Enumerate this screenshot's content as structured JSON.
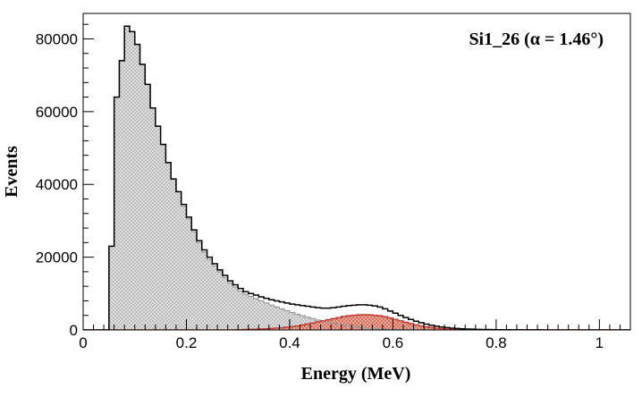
{
  "chart_data": {
    "type": "histogram",
    "title": "",
    "annotation": "Si1_26 (α = 1.46°)",
    "xlabel": "Energy (MeV)",
    "ylabel": "Events",
    "xlim": [
      0,
      1.06
    ],
    "ylim": [
      0,
      87000
    ],
    "bin_width": 0.01,
    "bin_start": 0,
    "grid": false,
    "legend": "none",
    "x_major_ticks": [
      0,
      0.2,
      0.4,
      0.6,
      0.8,
      1
    ],
    "x_tick_labels": [
      "0",
      "0.2",
      "0.4",
      "0.6",
      "0.8",
      "1"
    ],
    "y_major_ticks": [
      0,
      20000,
      40000,
      60000,
      80000
    ],
    "y_tick_labels": [
      "0",
      "20000",
      "40000",
      "60000",
      "80000"
    ],
    "series": [
      {
        "role": "total",
        "color": "#000000",
        "values": [
          0,
          0,
          0,
          0,
          0,
          23000,
          64000,
          74000,
          83500,
          82000,
          78500,
          73000,
          67500,
          61000,
          56000,
          51000,
          46000,
          41500,
          38000,
          34500,
          31000,
          27500,
          24500,
          22000,
          20000,
          18200,
          16500,
          15000,
          13500,
          12400,
          11400,
          10500,
          10000,
          9600,
          9100,
          8700,
          8300,
          8000,
          7700,
          7400,
          7100,
          6900,
          6700,
          6500,
          6300,
          6100,
          6000,
          6000,
          6100,
          6300,
          6500,
          6700,
          6800,
          6900,
          6900,
          6800,
          6600,
          6300,
          5800,
          5200,
          4600,
          4000,
          3400,
          2900,
          2400,
          2000,
          1600,
          1300,
          1000,
          800,
          650,
          500,
          400,
          320,
          260,
          200,
          160,
          130,
          110,
          90,
          70,
          60,
          50,
          40,
          35,
          30,
          25,
          20,
          20,
          15,
          15,
          10,
          10,
          10,
          10,
          10,
          5,
          5,
          5,
          5,
          5,
          5,
          5,
          5,
          5,
          5
        ]
      },
      {
        "role": "component-gray",
        "color": "#9a9a9a",
        "fill": "#d9d9d9",
        "values": [
          0,
          0,
          0,
          0,
          0,
          23000,
          64000,
          74000,
          83500,
          82000,
          78500,
          73000,
          67500,
          61000,
          56000,
          51000,
          46000,
          41500,
          38000,
          34000,
          30500,
          27000,
          24000,
          21400,
          19400,
          17600,
          16000,
          14400,
          12900,
          11800,
          10700,
          9800,
          9200,
          8600,
          8000,
          7400,
          6800,
          6300,
          5800,
          5300,
          4800,
          4300,
          3900,
          3500,
          3100,
          2700,
          2400,
          2100,
          1800,
          1500,
          1250,
          1050,
          850,
          700,
          560,
          450,
          360,
          280,
          220,
          170,
          130,
          100,
          80,
          60,
          45,
          35,
          25,
          20,
          15,
          10,
          8,
          6,
          5,
          4,
          3,
          2,
          2,
          1,
          1,
          1,
          0,
          0,
          0,
          0,
          0,
          0,
          0,
          0,
          0,
          0,
          0,
          0,
          0,
          0,
          0,
          0,
          0,
          0,
          0,
          0,
          0,
          0,
          0,
          0,
          0,
          0
        ]
      },
      {
        "role": "component-red",
        "color": "#c0392b",
        "fill": "#e8a090",
        "values": [
          0,
          0,
          0,
          0,
          0,
          0,
          0,
          0,
          0,
          0,
          0,
          0,
          0,
          0,
          0,
          0,
          0,
          0,
          0,
          0,
          0,
          0,
          0,
          0,
          0,
          0,
          0,
          0,
          0,
          50,
          80,
          120,
          160,
          200,
          250,
          320,
          400,
          500,
          600,
          750,
          900,
          1100,
          1350,
          1600,
          1900,
          2200,
          2500,
          2800,
          3100,
          3400,
          3700,
          3900,
          4050,
          4150,
          4200,
          4150,
          4050,
          3900,
          3650,
          3300,
          2900,
          2500,
          2100,
          1750,
          1400,
          1100,
          850,
          650,
          480,
          350,
          250,
          180,
          120,
          80,
          50,
          30,
          20,
          10,
          5,
          0,
          0,
          0,
          0,
          0,
          0,
          0,
          0,
          0,
          0,
          0,
          0,
          0,
          0,
          0,
          0,
          0,
          0,
          0,
          0,
          0,
          0,
          0,
          0,
          0,
          0,
          0
        ]
      }
    ]
  }
}
